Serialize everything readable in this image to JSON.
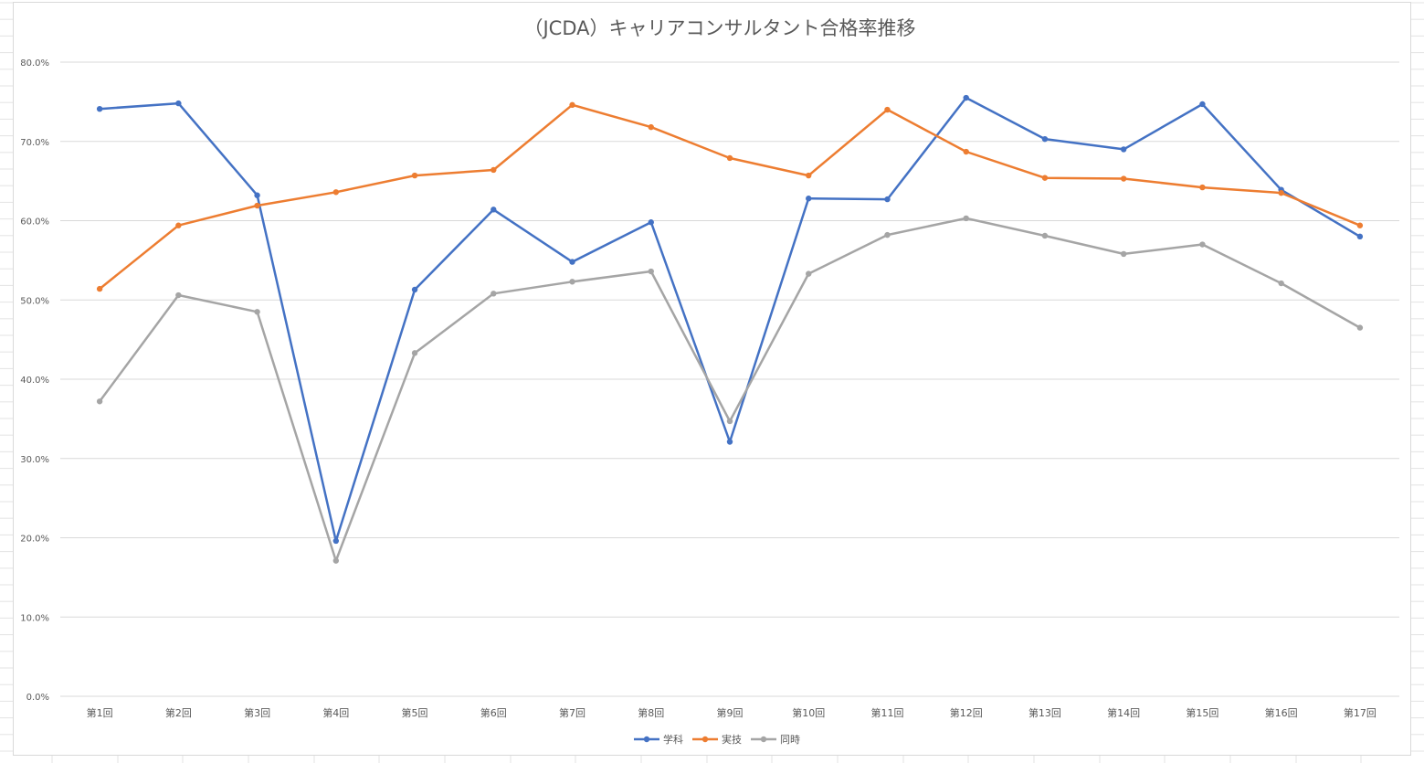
{
  "chart_data": {
    "type": "line",
    "title": "（JCDA）キャリアコンサルタント合格率推移",
    "xlabel": "",
    "ylabel": "",
    "categories": [
      "第1回",
      "第2回",
      "第3回",
      "第4回",
      "第5回",
      "第6回",
      "第7回",
      "第8回",
      "第9回",
      "第10回",
      "第11回",
      "第12回",
      "第13回",
      "第14回",
      "第15回",
      "第16回",
      "第17回"
    ],
    "ylim": [
      0,
      80
    ],
    "yticks": [
      0,
      10,
      20,
      30,
      40,
      50,
      60,
      70,
      80
    ],
    "ytick_labels": [
      "0.0%",
      "10.0%",
      "20.0%",
      "30.0%",
      "40.0%",
      "50.0%",
      "60.0%",
      "70.0%",
      "80.0%"
    ],
    "grid": true,
    "legend_position": "bottom",
    "series": [
      {
        "name": "学科",
        "color": "#4472c4",
        "values": [
          74.1,
          74.8,
          63.2,
          19.6,
          51.3,
          61.4,
          54.8,
          59.8,
          32.1,
          62.8,
          62.7,
          75.5,
          70.3,
          69.0,
          74.7,
          63.9,
          58.0
        ]
      },
      {
        "name": "実技",
        "color": "#ed7d31",
        "values": [
          51.4,
          59.4,
          61.9,
          63.6,
          65.7,
          66.4,
          74.6,
          71.8,
          67.9,
          65.7,
          74.0,
          68.7,
          65.4,
          65.3,
          64.2,
          63.5,
          59.4
        ]
      },
      {
        "name": "同時",
        "color": "#a5a5a5",
        "values": [
          37.2,
          50.6,
          48.5,
          17.1,
          43.3,
          50.8,
          52.3,
          53.6,
          34.7,
          53.3,
          58.2,
          60.3,
          58.1,
          55.8,
          57.0,
          52.1,
          46.5
        ]
      }
    ]
  }
}
